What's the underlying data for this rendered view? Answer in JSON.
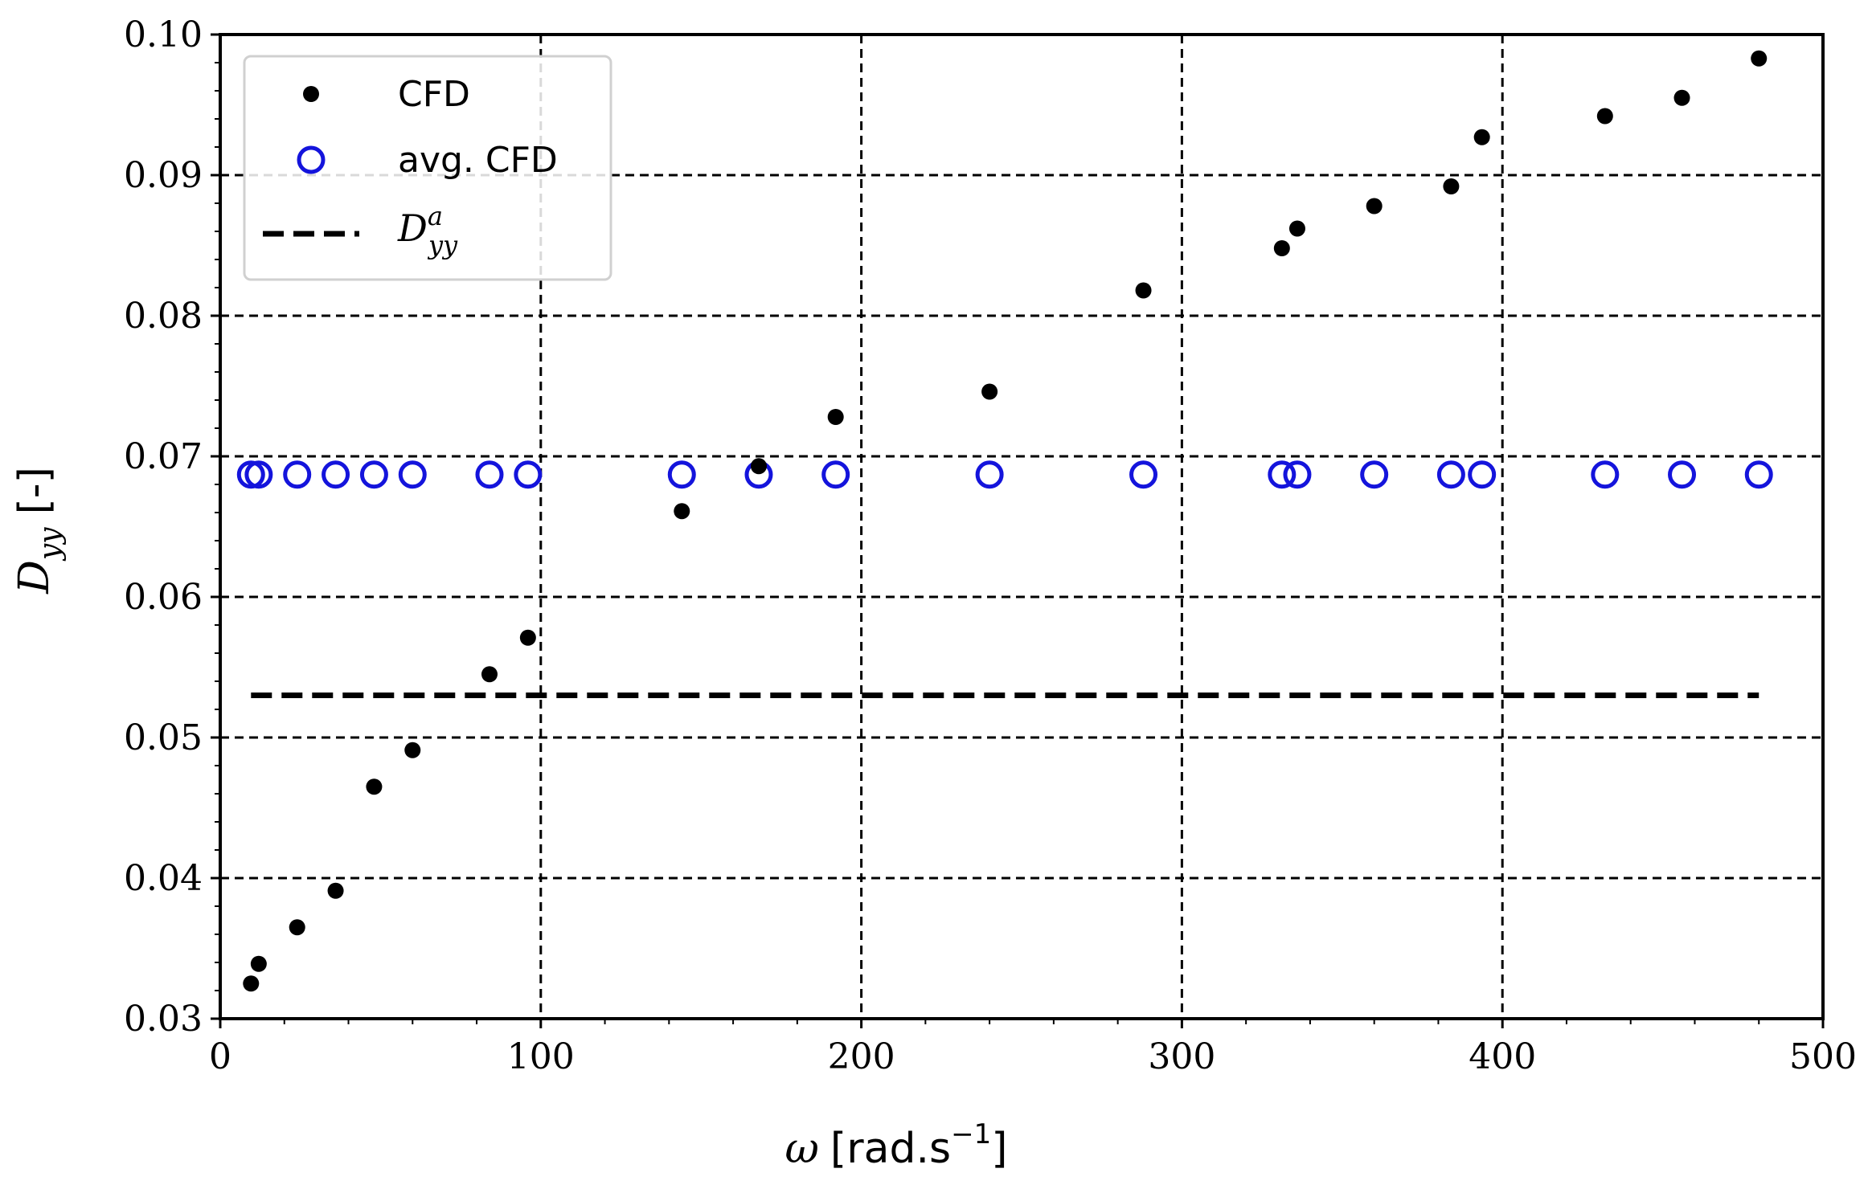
{
  "chart_data": {
    "type": "scatter",
    "title": "",
    "xlabel": "ω [rad.s⁻¹]",
    "ylabel": "D_yy [-]",
    "xlim": [
      0,
      500
    ],
    "ylim": [
      0.03,
      0.1
    ],
    "grid": true,
    "legend_position": "top-left",
    "x_ticks": [
      0,
      100,
      200,
      300,
      400,
      500
    ],
    "x_tick_labels": [
      "0",
      "100",
      "200",
      "300",
      "400",
      "500"
    ],
    "y_ticks": [
      0.03,
      0.04,
      0.05,
      0.06,
      0.07,
      0.08,
      0.09,
      0.1
    ],
    "y_tick_labels": [
      "0.03",
      "0.04",
      "0.05",
      "0.06",
      "0.07",
      "0.08",
      "0.09",
      "0.10"
    ],
    "series": [
      {
        "name": "CFD",
        "marker": "filled-circle",
        "color": "#000000",
        "x": [
          9.6,
          12,
          24,
          36,
          48,
          60,
          84,
          96,
          144,
          168,
          192,
          240,
          288,
          331.2,
          336,
          360,
          384,
          393.6,
          432,
          456,
          480
        ],
        "y": [
          0.0325,
          0.0339,
          0.0365,
          0.0391,
          0.0465,
          0.0491,
          0.0545,
          0.0571,
          0.0661,
          0.0693,
          0.0728,
          0.0746,
          0.0818,
          0.0848,
          0.0862,
          0.0878,
          0.0892,
          0.0927,
          0.0942,
          0.0955,
          0.0983
        ]
      },
      {
        "name": "avg. CFD",
        "marker": "open-circle",
        "color": "#1414dc",
        "x": [
          9.6,
          12,
          24,
          36,
          48,
          60,
          84,
          96,
          144,
          168,
          192,
          240,
          288,
          331.2,
          336,
          360,
          384,
          393.6,
          432,
          456,
          480
        ],
        "y": [
          0.0687,
          0.0687,
          0.0687,
          0.0687,
          0.0687,
          0.0687,
          0.0687,
          0.0687,
          0.0687,
          0.0687,
          0.0687,
          0.0687,
          0.0687,
          0.0687,
          0.0687,
          0.0687,
          0.0687,
          0.0687,
          0.0687,
          0.0687,
          0.0687
        ]
      },
      {
        "name": "D^a_yy",
        "marker": "dashed-line",
        "color": "#000000",
        "x": [
          9.6,
          480
        ],
        "y": [
          0.053,
          0.053
        ]
      }
    ],
    "legend": {
      "cfd_label": "CFD",
      "avg_label": "avg. CFD",
      "analytic_label_base": "D",
      "analytic_label_sup": "a",
      "analytic_label_sub": "yy"
    },
    "axis_text": {
      "x_symbol": "ω",
      "x_unit_open": "[rad.s",
      "x_unit_sup": "−1",
      "x_unit_close": "]",
      "y_symbol": "D",
      "y_sub": "yy",
      "y_unit": "[-]"
    }
  }
}
